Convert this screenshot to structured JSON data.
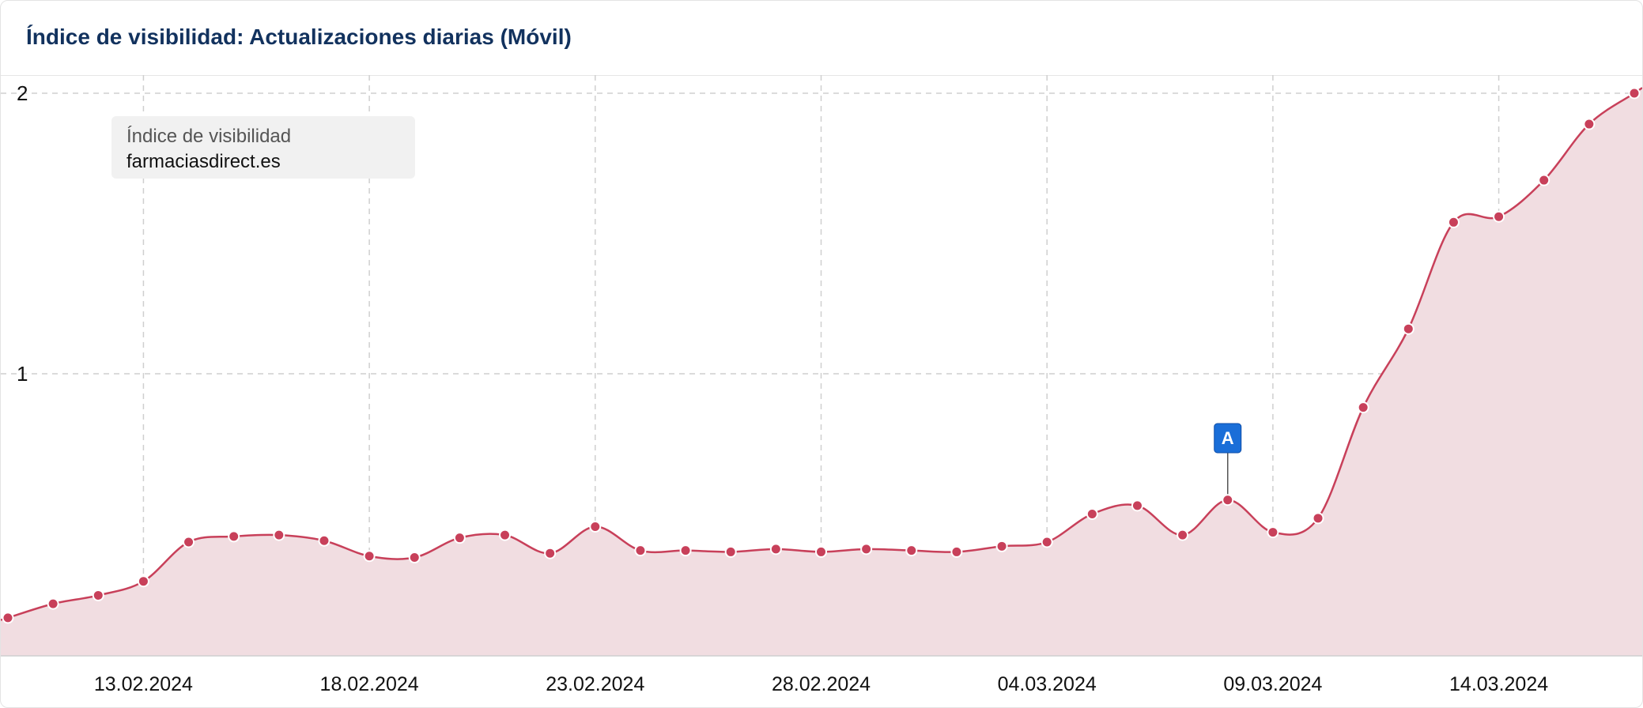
{
  "card": {
    "title": "Índice de visibilidad: Actualizaciones diarias (Móvil)"
  },
  "legend": {
    "title": "Índice de visibilidad",
    "series_name": "farmaciasdirect.es"
  },
  "colors": {
    "line": "#c8405a",
    "area": "#f1dde1",
    "point": "#c8405a",
    "grid": "#cfcfcf",
    "annotation": "#1a6ed8",
    "title": "#12325e"
  },
  "chart_data": {
    "type": "area",
    "title": "Índice de visibilidad: Actualizaciones diarias (Móvil)",
    "x_tick_labels": [
      "13.02.2024",
      "18.02.2024",
      "23.02.2024",
      "28.02.2024",
      "04.03.2024",
      "09.03.2024",
      "14.03.2024"
    ],
    "x_tick_dates": [
      "2024-02-13",
      "2024-02-18",
      "2024-02-23",
      "2024-02-28",
      "2024-03-04",
      "2024-03-09",
      "2024-03-14"
    ],
    "y_ticks": [
      1,
      2
    ],
    "ylim": [
      0,
      2.06
    ],
    "grid": true,
    "legend_position": "top-left",
    "series": [
      {
        "name": "farmaciasdirect.es",
        "x": [
          "2024-02-10",
          "2024-02-11",
          "2024-02-12",
          "2024-02-13",
          "2024-02-14",
          "2024-02-15",
          "2024-02-16",
          "2024-02-17",
          "2024-02-18",
          "2024-02-19",
          "2024-02-20",
          "2024-02-21",
          "2024-02-22",
          "2024-02-23",
          "2024-02-24",
          "2024-02-25",
          "2024-02-26",
          "2024-02-27",
          "2024-02-28",
          "2024-02-29",
          "2024-03-01",
          "2024-03-02",
          "2024-03-03",
          "2024-03-04",
          "2024-03-05",
          "2024-03-06",
          "2024-03-07",
          "2024-03-08",
          "2024-03-09",
          "2024-03-10",
          "2024-03-11",
          "2024-03-12",
          "2024-03-13",
          "2024-03-14",
          "2024-03-15",
          "2024-03-16",
          "2024-03-17"
        ],
        "y": [
          0.13,
          0.18,
          0.21,
          0.26,
          0.4,
          0.42,
          0.425,
          0.405,
          0.35,
          0.345,
          0.415,
          0.425,
          0.36,
          0.455,
          0.37,
          0.37,
          0.365,
          0.375,
          0.365,
          0.375,
          0.37,
          0.365,
          0.385,
          0.4,
          0.5,
          0.53,
          0.425,
          0.55,
          0.435,
          0.485,
          0.88,
          1.16,
          1.54,
          1.56,
          1.69,
          1.89,
          2.0
        ]
      }
    ],
    "annotations": [
      {
        "label": "A",
        "x": "2024-03-08"
      }
    ]
  }
}
